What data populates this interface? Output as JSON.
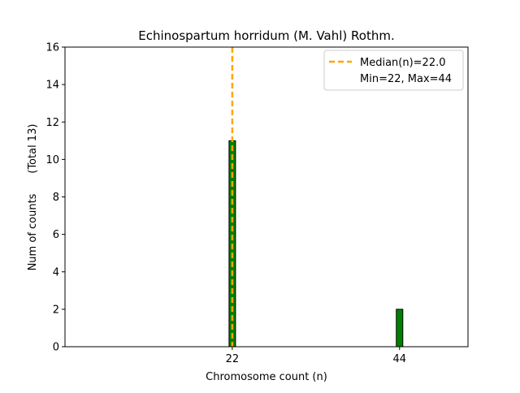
{
  "chart_data": {
    "type": "bar",
    "title": "Echinospartum horridum (M. Vahl) Rothm.",
    "xlabel": "Chromosome count (n)",
    "ylabel": "Num of counts      (Total 13)",
    "x": [
      22,
      44
    ],
    "values": [
      11,
      2
    ],
    "xticks": [
      "22",
      "44"
    ],
    "yticks": [
      "0",
      "2",
      "4",
      "6",
      "8",
      "10",
      "12",
      "14",
      "16"
    ],
    "ylim": [
      0,
      16
    ],
    "xlim": [
      0,
      53
    ],
    "bar_color": "#008000",
    "bar_edge_color": "#000000",
    "median_line": {
      "value": 22.0,
      "color": "#FFA500"
    },
    "legend": {
      "position": "top-right",
      "entries": [
        "Median(n)=22.0",
        "Min=22, Max=44"
      ]
    }
  }
}
